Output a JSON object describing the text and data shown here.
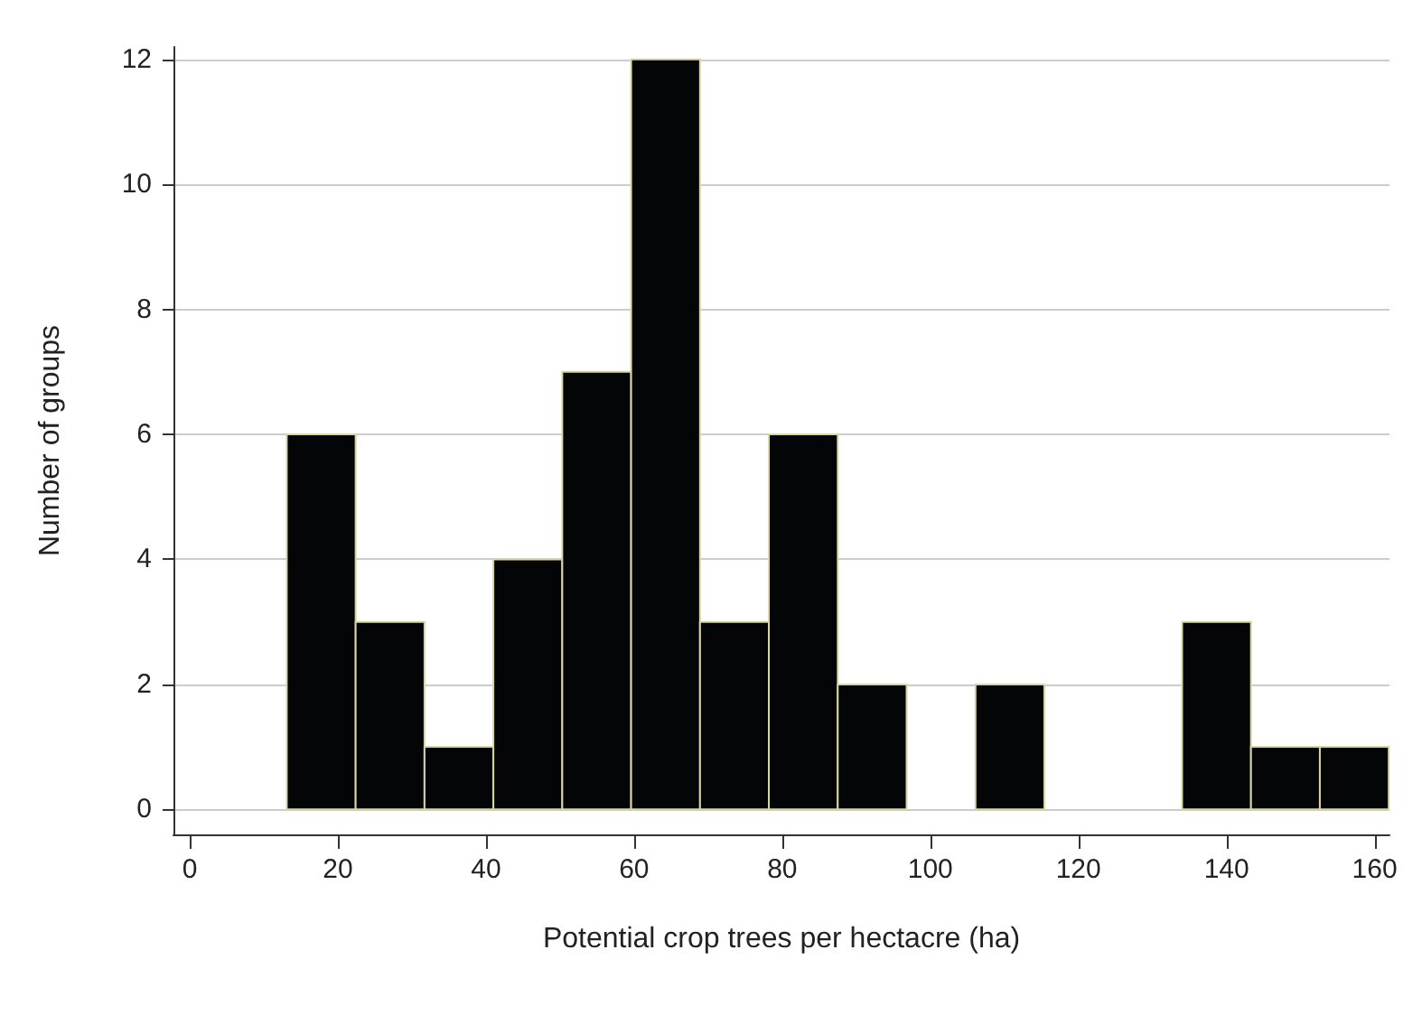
{
  "chart_data": {
    "type": "histogram",
    "xlabel": "Potential crop trees per hectacre (ha)",
    "ylabel": "Number of groups",
    "bins": [
      13.1,
      22.4,
      31.7,
      41.0,
      50.3,
      59.6,
      68.9,
      78.2,
      87.5,
      96.8,
      106.1,
      115.4,
      124.7,
      134.0,
      143.3,
      152.6,
      161.9
    ],
    "values": [
      6,
      3,
      1,
      4,
      7,
      12,
      3,
      6,
      2,
      0,
      2,
      0,
      0,
      3,
      1,
      1
    ],
    "color": "#030507",
    "xlim": [
      -2.2,
      162
    ],
    "xticks": [
      0,
      20,
      40,
      60,
      80,
      100,
      120,
      140,
      160
    ],
    "ylim": [
      -0.4,
      12.2
    ],
    "yticks": [
      0,
      2,
      4,
      6,
      8,
      10,
      12
    ],
    "grid": "y"
  }
}
